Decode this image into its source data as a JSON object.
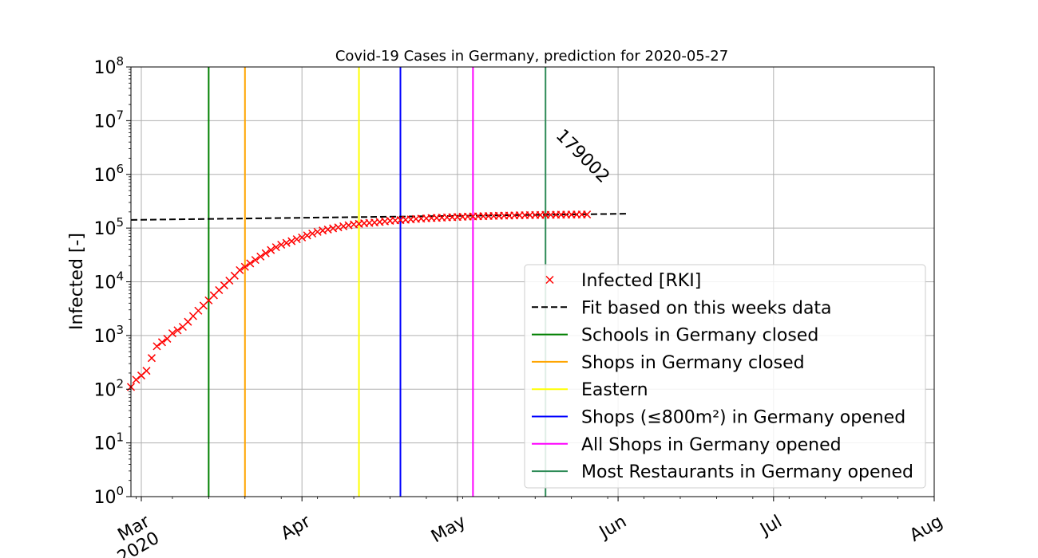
{
  "chart_data": {
    "type": "scatter",
    "title": "Covid-19 Cases in Germany, prediction for 2020-05-27",
    "ylabel": "Infected [-]",
    "xlabel": "",
    "yscale": "log",
    "ylim": [
      1,
      100000000
    ],
    "xlim": [
      "2020-02-28",
      "2020-08-01"
    ],
    "grid": true,
    "legend_position": "lower-right",
    "y_ticks": [
      {
        "value": 1,
        "base": "10",
        "exp": "0"
      },
      {
        "value": 10,
        "base": "10",
        "exp": "1"
      },
      {
        "value": 100,
        "base": "10",
        "exp": "2"
      },
      {
        "value": 1000,
        "base": "10",
        "exp": "3"
      },
      {
        "value": 10000,
        "base": "10",
        "exp": "4"
      },
      {
        "value": 100000,
        "base": "10",
        "exp": "5"
      },
      {
        "value": 1000000,
        "base": "10",
        "exp": "6"
      },
      {
        "value": 10000000,
        "base": "10",
        "exp": "7"
      },
      {
        "value": 100000000,
        "base": "10",
        "exp": "8"
      }
    ],
    "x_ticks": [
      {
        "date": "2020-03-01",
        "label": "Mar",
        "sublabel": "2020"
      },
      {
        "date": "2020-04-01",
        "label": "Apr",
        "sublabel": ""
      },
      {
        "date": "2020-05-01",
        "label": "May",
        "sublabel": ""
      },
      {
        "date": "2020-06-01",
        "label": "Jun",
        "sublabel": ""
      },
      {
        "date": "2020-07-01",
        "label": "Jul",
        "sublabel": ""
      },
      {
        "date": "2020-08-01",
        "label": "Aug",
        "sublabel": ""
      }
    ],
    "series": [
      {
        "name": "Infected [RKI]",
        "marker": "x",
        "color": "#ff0000",
        "points": [
          [
            "2020-02-28",
            110
          ],
          [
            "2020-02-29",
            150
          ],
          [
            "2020-03-01",
            180
          ],
          [
            "2020-03-02",
            220
          ],
          [
            "2020-03-03",
            380
          ],
          [
            "2020-03-04",
            630
          ],
          [
            "2020-03-05",
            750
          ],
          [
            "2020-03-06",
            870
          ],
          [
            "2020-03-07",
            1100
          ],
          [
            "2020-03-08",
            1250
          ],
          [
            "2020-03-09",
            1450
          ],
          [
            "2020-03-10",
            1800
          ],
          [
            "2020-03-11",
            2300
          ],
          [
            "2020-03-12",
            2900
          ],
          [
            "2020-03-13",
            3600
          ],
          [
            "2020-03-14",
            4500
          ],
          [
            "2020-03-15",
            5600
          ],
          [
            "2020-03-16",
            7000
          ],
          [
            "2020-03-17",
            8600
          ],
          [
            "2020-03-18",
            10500
          ],
          [
            "2020-03-19",
            13000
          ],
          [
            "2020-03-20",
            16500
          ],
          [
            "2020-03-21",
            19000
          ],
          [
            "2020-03-22",
            22000
          ],
          [
            "2020-03-23",
            25500
          ],
          [
            "2020-03-24",
            29500
          ],
          [
            "2020-03-25",
            34000
          ],
          [
            "2020-03-26",
            39000
          ],
          [
            "2020-03-27",
            44000
          ],
          [
            "2020-03-28",
            49000
          ],
          [
            "2020-03-29",
            53000
          ],
          [
            "2020-03-30",
            57000
          ],
          [
            "2020-03-31",
            62000
          ],
          [
            "2020-04-01",
            67000
          ],
          [
            "2020-04-02",
            73000
          ],
          [
            "2020-04-03",
            79000
          ],
          [
            "2020-04-04",
            85000
          ],
          [
            "2020-04-05",
            90000
          ],
          [
            "2020-04-06",
            94000
          ],
          [
            "2020-04-07",
            99000
          ],
          [
            "2020-04-08",
            103000
          ],
          [
            "2020-04-09",
            108000
          ],
          [
            "2020-04-10",
            113000
          ],
          [
            "2020-04-11",
            117000
          ],
          [
            "2020-04-12",
            120000
          ],
          [
            "2020-04-13",
            123000
          ],
          [
            "2020-04-14",
            125000
          ],
          [
            "2020-04-15",
            127000
          ],
          [
            "2020-04-16",
            130000
          ],
          [
            "2020-04-17",
            133000
          ],
          [
            "2020-04-18",
            137000
          ],
          [
            "2020-04-19",
            139000
          ],
          [
            "2020-04-20",
            141000
          ],
          [
            "2020-04-21",
            143000
          ],
          [
            "2020-04-22",
            145000
          ],
          [
            "2020-04-23",
            148000
          ],
          [
            "2020-04-24",
            150000
          ],
          [
            "2020-04-25",
            152000
          ],
          [
            "2020-04-26",
            154000
          ],
          [
            "2020-04-27",
            155000
          ],
          [
            "2020-04-28",
            156500
          ],
          [
            "2020-04-29",
            158000
          ],
          [
            "2020-04-30",
            159500
          ],
          [
            "2020-05-01",
            161000
          ],
          [
            "2020-05-02",
            162500
          ],
          [
            "2020-05-03",
            163500
          ],
          [
            "2020-05-04",
            164500
          ],
          [
            "2020-05-05",
            165500
          ],
          [
            "2020-05-06",
            166500
          ],
          [
            "2020-05-07",
            167500
          ],
          [
            "2020-05-08",
            168500
          ],
          [
            "2020-05-09",
            169500
          ],
          [
            "2020-05-10",
            170500
          ],
          [
            "2020-05-11",
            171000
          ],
          [
            "2020-05-12",
            172000
          ],
          [
            "2020-05-13",
            173000
          ],
          [
            "2020-05-14",
            173500
          ],
          [
            "2020-05-15",
            174500
          ],
          [
            "2020-05-16",
            175000
          ],
          [
            "2020-05-17",
            175500
          ],
          [
            "2020-05-18",
            176000
          ],
          [
            "2020-05-19",
            176500
          ],
          [
            "2020-05-20",
            177000
          ],
          [
            "2020-05-21",
            177500
          ],
          [
            "2020-05-22",
            178000
          ],
          [
            "2020-05-23",
            178300
          ],
          [
            "2020-05-24",
            178600
          ],
          [
            "2020-05-25",
            178800
          ],
          [
            "2020-05-26",
            179002
          ]
        ]
      },
      {
        "name": "Fit based on this weeks data",
        "style": "dashed",
        "color": "#000000",
        "points": [
          [
            "2020-02-28",
            142000
          ],
          [
            "2020-06-03",
            185000
          ]
        ]
      }
    ],
    "vlines": [
      {
        "name": "Schools in Germany closed",
        "date": "2020-03-14",
        "color": "#008000"
      },
      {
        "name": "Shops in Germany closed",
        "date": "2020-03-21",
        "color": "#ffa500"
      },
      {
        "name": "Eastern",
        "date": "2020-04-12",
        "color": "#ffff00"
      },
      {
        "name": "Shops (≤800m²) in Germany opened",
        "date": "2020-04-20",
        "color": "#0000ff"
      },
      {
        "name": "All Shops in Germany opened",
        "date": "2020-05-04",
        "color": "#ff00ff"
      },
      {
        "name": "Most Restaurants in Germany opened",
        "date": "2020-05-18",
        "color": "#2e8b57"
      }
    ],
    "annotations": [
      {
        "text": "179002",
        "date": "2020-05-26",
        "value": 179002
      }
    ]
  }
}
